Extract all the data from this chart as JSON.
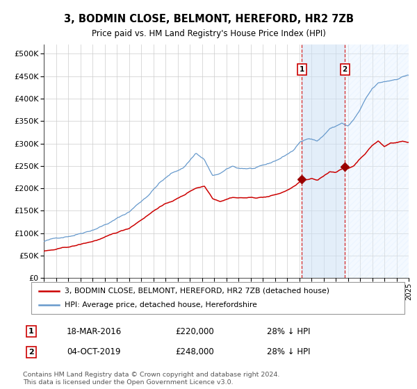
{
  "title": "3, BODMIN CLOSE, BELMONT, HEREFORD, HR2 7ZB",
  "subtitle": "Price paid vs. HM Land Registry's House Price Index (HPI)",
  "legend_line1": "3, BODMIN CLOSE, BELMONT, HEREFORD, HR2 7ZB (detached house)",
  "legend_line2": "HPI: Average price, detached house, Herefordshire",
  "transaction1_date": "18-MAR-2016",
  "transaction1_price": 220000,
  "transaction1_label": "28% ↓ HPI",
  "transaction2_date": "04-OCT-2019",
  "transaction2_price": 248000,
  "transaction2_label": "28% ↓ HPI",
  "footer": "Contains HM Land Registry data © Crown copyright and database right 2024.\nThis data is licensed under the Open Government Licence v3.0.",
  "hpi_color": "#6699cc",
  "property_color": "#cc0000",
  "marker_color": "#990000",
  "vline_color": "#cc0000",
  "shade_color": "#ddeeff",
  "grid_color": "#cccccc",
  "background_color": "#ffffff",
  "ylim": [
    0,
    520000
  ],
  "yticks": [
    0,
    50000,
    100000,
    150000,
    200000,
    250000,
    300000,
    350000,
    400000,
    450000,
    500000
  ],
  "transaction1_year": 2016.21,
  "transaction2_year": 2019.75
}
